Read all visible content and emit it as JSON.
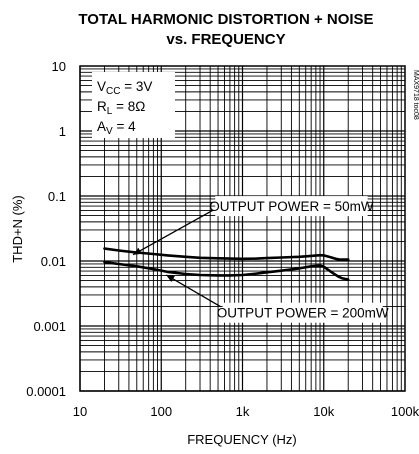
{
  "chart_data": {
    "type": "line",
    "title_line1": "TOTAL HARMONIC DISTORTION + NOISE",
    "title_line2": "vs. FREQUENCY",
    "xlabel": "FREQUENCY (Hz)",
    "ylabel": "THD+N (%)",
    "x_scale": "log",
    "y_scale": "log",
    "xlim": [
      10,
      100000
    ],
    "ylim": [
      0.0001,
      10
    ],
    "grid": true,
    "x_ticks": [
      {
        "value": 10,
        "label": "10"
      },
      {
        "value": 100,
        "label": "100"
      },
      {
        "value": 1000,
        "label": "1k"
      },
      {
        "value": 10000,
        "label": "10k"
      },
      {
        "value": 100000,
        "label": "100k"
      }
    ],
    "y_ticks": [
      {
        "value": 10,
        "label": "10"
      },
      {
        "value": 1,
        "label": "1"
      },
      {
        "value": 0.1,
        "label": "0.1"
      },
      {
        "value": 0.01,
        "label": "0.01"
      },
      {
        "value": 0.001,
        "label": "0.001"
      },
      {
        "value": 0.0001,
        "label": "0.0001"
      }
    ],
    "conditions": {
      "vcc": {
        "main": "V",
        "sub": "CC",
        "rest": " = 3V"
      },
      "rl": {
        "main": "R",
        "sub": "L",
        "rest": " = 8Ω"
      },
      "av": {
        "main": "A",
        "sub": "V",
        "rest": " = 4"
      }
    },
    "code_text": "MAX9718 toc08",
    "series": [
      {
        "label": "OUTPUT POWER = 50mW",
        "label_anchor": {
          "x": 4000,
          "y": 0.07
        },
        "arrow_target": {
          "x": 45,
          "y": 0.0125
        },
        "x": [
          20,
          30,
          50,
          80,
          120,
          200,
          300,
          500,
          700,
          1000,
          1500,
          2000,
          3000,
          5000,
          7000,
          9000,
          10000,
          12000,
          14000,
          16000,
          18000,
          20000
        ],
        "y": [
          0.0155,
          0.0145,
          0.0135,
          0.0128,
          0.0122,
          0.0116,
          0.0112,
          0.011,
          0.0109,
          0.0108,
          0.0109,
          0.0111,
          0.0113,
          0.0116,
          0.012,
          0.0123,
          0.0122,
          0.0115,
          0.0108,
          0.0105,
          0.0105,
          0.0105
        ]
      },
      {
        "label": "OUTPUT POWER = 200mW",
        "label_anchor": {
          "x": 5500,
          "y": 0.0016
        },
        "arrow_target": {
          "x": 115,
          "y": 0.0061
        },
        "x": [
          20,
          30,
          50,
          80,
          120,
          200,
          300,
          500,
          700,
          1000,
          1500,
          2000,
          3000,
          5000,
          7000,
          9000,
          10000,
          11000,
          13000,
          15000,
          17000,
          20000
        ],
        "y": [
          0.0096,
          0.009,
          0.0083,
          0.0075,
          0.0068,
          0.0063,
          0.0061,
          0.006,
          0.006,
          0.0061,
          0.0064,
          0.0067,
          0.0071,
          0.0077,
          0.0083,
          0.0085,
          0.0082,
          0.0075,
          0.0065,
          0.0058,
          0.0054,
          0.0052
        ]
      }
    ]
  }
}
